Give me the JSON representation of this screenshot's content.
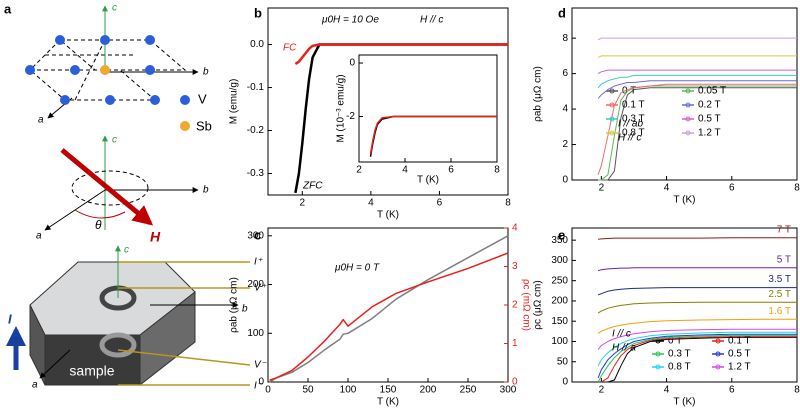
{
  "panel_a": {
    "label": "a",
    "axes_top": [
      "c",
      "b",
      "a"
    ],
    "atoms": [
      "V",
      "Sb"
    ],
    "axes_mid": [
      "c",
      "b",
      "a"
    ],
    "angle": "θ",
    "field": "H",
    "axes_bottom": [
      "c",
      "b",
      "a"
    ],
    "current": "I",
    "leads": [
      "I⁺",
      "V⁺",
      "V⁻",
      "I⁻"
    ],
    "sample": "sample"
  },
  "chart_data": [
    {
      "type": "line",
      "panel_label": "b",
      "x_label": "T (K)",
      "y_label": "M (emu/g)",
      "x": [
        1.8,
        1.9,
        2.0,
        2.1,
        2.2,
        2.3,
        2.5,
        3,
        4,
        5,
        6,
        7,
        8
      ],
      "series": [
        {
          "name": "ZFC",
          "color": "#000000",
          "values": [
            -0.345,
            -0.3,
            -0.23,
            -0.15,
            -0.08,
            -0.03,
            0,
            0,
            0,
            0,
            0,
            0,
            0
          ]
        },
        {
          "name": "FC",
          "color": "#e8201a",
          "values": [
            -0.045,
            -0.04,
            -0.03,
            -0.02,
            -0.01,
            -0.003,
            0,
            0,
            0,
            0,
            0,
            0,
            0
          ]
        }
      ],
      "xlim": [
        1,
        8
      ],
      "xticks": [
        2,
        4,
        6,
        8
      ],
      "ylim": [
        -0.35,
        0.085
      ],
      "yticks": [
        {
          "value": 0,
          "label": "0.0"
        },
        {
          "value": -0.1,
          "label": "-0.1"
        },
        {
          "value": -0.2,
          "label": "-0.2"
        },
        {
          "value": -0.3,
          "label": "-0.3"
        }
      ],
      "annotations": [
        {
          "text": "FC",
          "color": "#e8201a"
        },
        {
          "text": "ZFC",
          "color": "#000000"
        },
        {
          "text": "μ0H = 10 Oe",
          "color": "#000000"
        },
        {
          "text": "H // c",
          "color": "#000000"
        }
      ]
    },
    {
      "type": "line",
      "x_label": "T (K)",
      "y_label": "M (10⁻³ emu/g)",
      "x": [
        2.5,
        2.6,
        2.7,
        2.8,
        3,
        3.5,
        4,
        5,
        6,
        7,
        8
      ],
      "series": [
        {
          "name": "ZFC",
          "color": "#000000",
          "values": [
            -3.5,
            -3.0,
            -2.6,
            -2.3,
            -2.1,
            -2.0,
            -2.0,
            -2.0,
            -2.0,
            -2.0,
            -2.0
          ]
        },
        {
          "name": "FC",
          "color": "#e8201a",
          "values": [
            -3.4,
            -2.9,
            -2.5,
            -2.25,
            -2.05,
            -2.0,
            -2.0,
            -2.0,
            -2.0,
            -2.0,
            -2.0
          ]
        }
      ],
      "xlim": [
        2,
        8
      ],
      "xticks": [
        2,
        4,
        6,
        8
      ],
      "ylim": [
        -3.7,
        0.3
      ],
      "yticks": [
        0,
        -2
      ]
    },
    {
      "type": "line",
      "panel_label": "c",
      "x_label": "T (K)",
      "y_label": "ρab (μΩ cm)",
      "y2_label": "ρc (mΩ cm)",
      "x": [
        2,
        10,
        30,
        50,
        70,
        90,
        94,
        100,
        130,
        160,
        200,
        250,
        300
      ],
      "series": [
        {
          "name": "ρab",
          "color": "#7f7f7f",
          "values": [
            0,
            8,
            20,
            40,
            65,
            88,
            98,
            100,
            130,
            170,
            210,
            255,
            300
          ]
        },
        {
          "name": "ρc",
          "color": "#e8201a",
          "axis": "y2",
          "values": [
            0.05,
            0.1,
            0.3,
            0.65,
            1.05,
            1.5,
            1.62,
            1.45,
            1.95,
            2.3,
            2.6,
            2.95,
            3.35
          ]
        }
      ],
      "xlim": [
        0,
        300
      ],
      "xticks": [
        0,
        50,
        100,
        150,
        200,
        250,
        300
      ],
      "ylim": [
        0,
        316
      ],
      "yticks": [
        0,
        100,
        200,
        300
      ],
      "y2lim": [
        0,
        4
      ],
      "y2ticks": [
        0,
        1,
        2,
        3,
        4
      ],
      "annotations": [
        {
          "text": "μ0H = 0 T",
          "color": "#000000"
        }
      ]
    },
    {
      "type": "line",
      "panel_label": "d",
      "x_label": "T (K)",
      "y_label": "ρab (μΩ cm)",
      "legend": "center right",
      "x": [
        1.9,
        2.0,
        2.2,
        2.4,
        2.6,
        2.8,
        3.0,
        3.5,
        4,
        5,
        6,
        7,
        8
      ],
      "series": [
        {
          "name": "0 T",
          "color": "#555555",
          "values": [
            0,
            0,
            0,
            0.5,
            3.5,
            4.8,
            5.1,
            5.2,
            5.2,
            5.2,
            5.2,
            5.2,
            5.2
          ]
        },
        {
          "name": "0.05 T",
          "color": "#5cb85c",
          "values": [
            0,
            0,
            0.3,
            2.5,
            4.5,
            5.0,
            5.2,
            5.3,
            5.3,
            5.3,
            5.3,
            5.3,
            5.3
          ]
        },
        {
          "name": "0.1 T",
          "color": "#ef6b6b",
          "values": [
            0.3,
            0.8,
            2.5,
            4.2,
            4.9,
            5.1,
            5.2,
            5.3,
            5.4,
            5.4,
            5.4,
            5.4,
            5.4
          ]
        },
        {
          "name": "0.2 T",
          "color": "#6a6adb",
          "values": [
            4.6,
            4.8,
            5.1,
            5.3,
            5.4,
            5.5,
            5.5,
            5.6,
            5.6,
            5.6,
            5.6,
            5.6,
            5.6
          ]
        },
        {
          "name": "0.3 T",
          "color": "#3fc7c7",
          "values": [
            5.2,
            5.4,
            5.6,
            5.7,
            5.8,
            5.8,
            5.9,
            5.9,
            5.9,
            5.9,
            5.9,
            5.9,
            5.9
          ]
        },
        {
          "name": "0.5 T",
          "color": "#d062d0",
          "values": [
            6.0,
            6.1,
            6.2,
            6.2,
            6.2,
            6.2,
            6.2,
            6.2,
            6.2,
            6.2,
            6.2,
            6.2,
            6.2
          ]
        },
        {
          "name": "0.8 T",
          "color": "#d6c84a",
          "values": [
            6.9,
            7.0,
            7.0,
            7.0,
            7.0,
            7.0,
            7.0,
            7.0,
            7.0,
            7.0,
            7.0,
            7.0,
            7.0
          ]
        },
        {
          "name": "1.2 T",
          "color": "#c8a2d8",
          "values": [
            7.9,
            8.0,
            8.0,
            8.0,
            8.0,
            8.0,
            8.0,
            8.0,
            8.0,
            8.0,
            8.0,
            8.0,
            8.0
          ]
        }
      ],
      "xlim": [
        1.1,
        8
      ],
      "xticks": [
        2,
        4,
        6,
        8
      ],
      "ylim": [
        0,
        9.7
      ],
      "yticks": [
        0,
        2,
        4,
        6,
        8
      ],
      "annotations": [
        {
          "text": "I // ab",
          "color": "#000000"
        },
        {
          "text": "H // c",
          "color": "#000000"
        }
      ]
    },
    {
      "type": "line",
      "panel_label": "e",
      "x_label": "T (K)",
      "y_label": "ρc (μΩ cm)",
      "legend": "lower right",
      "x": [
        1.9,
        2.0,
        2.2,
        2.4,
        2.6,
        2.8,
        3.0,
        3.5,
        4,
        5,
        6,
        7,
        8
      ],
      "series": [
        {
          "name": "0 T",
          "color": "#000000",
          "values": [
            null,
            0,
            0,
            5,
            40,
            70,
            85,
            100,
            105,
            108,
            110,
            110,
            110
          ]
        },
        {
          "name": "0.1 T",
          "color": "#e8201a",
          "values": [
            null,
            0,
            10,
            40,
            65,
            80,
            90,
            103,
            107,
            110,
            112,
            112,
            112
          ]
        },
        {
          "name": "0.3 T",
          "color": "#22c55e",
          "values": [
            0,
            15,
            40,
            60,
            75,
            85,
            95,
            105,
            110,
            113,
            115,
            115,
            115
          ]
        },
        {
          "name": "0.5 T",
          "color": "#1f3fd6",
          "values": [
            10,
            30,
            55,
            70,
            82,
            92,
            100,
            108,
            113,
            116,
            118,
            118,
            118
          ]
        },
        {
          "name": "0.8 T",
          "color": "#22d3ee",
          "values": [
            40,
            55,
            72,
            85,
            95,
            102,
            107,
            114,
            118,
            121,
            123,
            123,
            123
          ]
        },
        {
          "name": "1.2 T",
          "color": "#d946ef",
          "values": [
            80,
            90,
            100,
            107,
            112,
            116,
            119,
            124,
            127,
            129,
            130,
            130,
            130
          ]
        },
        {
          "name": "1.6 T",
          "color": "#f59e0b",
          "label": "end",
          "values": [
            120,
            125,
            132,
            137,
            140,
            143,
            145,
            149,
            151,
            153,
            154,
            155,
            155
          ]
        },
        {
          "name": "2.5 T",
          "color": "#808000",
          "label": "end",
          "values": [
            170,
            175,
            182,
            186,
            189,
            191,
            193,
            195,
            196,
            197,
            197,
            197,
            197
          ]
        },
        {
          "name": "3.5 T",
          "color": "#1e2a8a",
          "label": "end",
          "values": [
            215,
            218,
            224,
            227,
            229,
            230,
            231,
            232,
            233,
            233,
            233,
            233,
            233
          ]
        },
        {
          "name": "5 T",
          "color": "#6b21a8",
          "label": "end",
          "values": [
            275,
            277,
            279,
            280,
            281,
            281,
            282,
            282,
            282,
            282,
            282,
            282,
            282
          ]
        },
        {
          "name": "7 T",
          "color": "#8b1a1a",
          "label": "end",
          "values": [
            352,
            353,
            354,
            355,
            355,
            355,
            355,
            355,
            355,
            355,
            356,
            356,
            356
          ]
        }
      ],
      "xlim": [
        1.1,
        8
      ],
      "xticks": [
        2,
        4,
        6,
        8
      ],
      "ylim": [
        0,
        380
      ],
      "yticks": [
        0,
        50,
        100,
        150,
        200,
        250,
        300,
        350
      ],
      "annotations": [
        {
          "text": "I // c",
          "color": "#000000"
        },
        {
          "text": "H // a",
          "color": "#000000"
        }
      ]
    }
  ]
}
